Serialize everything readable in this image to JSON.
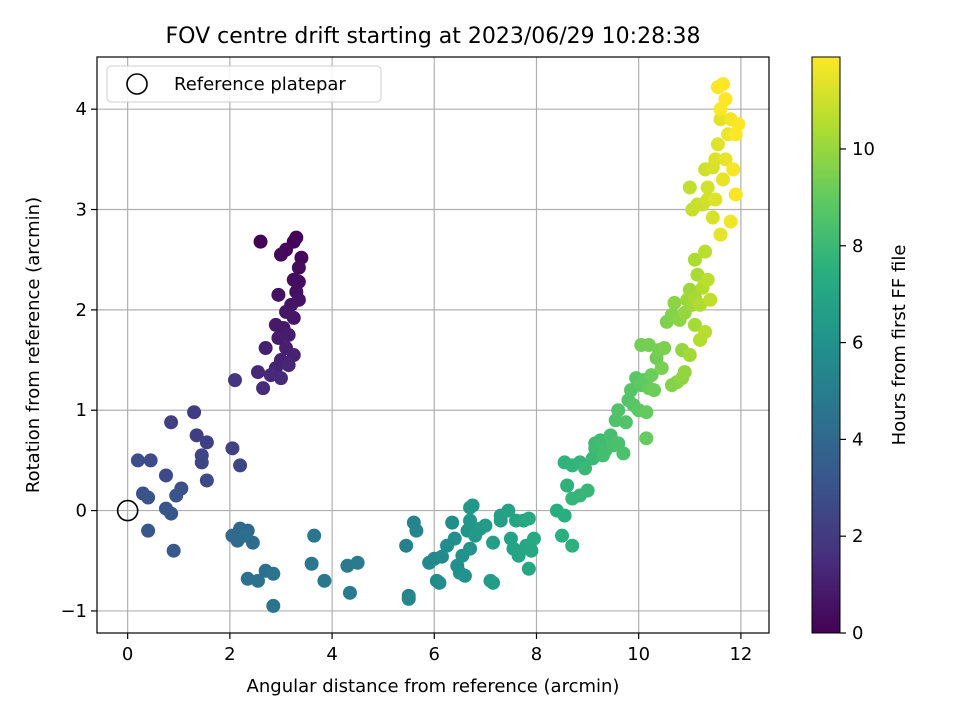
{
  "chart_data": {
    "type": "scatter",
    "title": "FOV centre drift starting at 2023/06/29 10:28:38",
    "xlabel": "Angular distance from reference (arcmin)",
    "ylabel": "Rotation from reference (arcmin)",
    "xlim": [
      -0.6,
      12.55
    ],
    "ylim": [
      -1.22,
      4.52
    ],
    "xticks": [
      0,
      2,
      4,
      6,
      8,
      10,
      12
    ],
    "yticks": [
      -1,
      0,
      1,
      2,
      3,
      4
    ],
    "grid": true,
    "legend": {
      "position": "top-left",
      "entries": [
        "Reference platepar"
      ]
    },
    "reference_point": {
      "x": 0,
      "y": 0
    },
    "colorbar": {
      "label": "Hours from first FF file",
      "min": 0,
      "max": 11.9,
      "ticks": [
        0,
        2,
        4,
        6,
        8,
        10
      ],
      "colormap": "viridis"
    },
    "points": [
      [
        3.3,
        2.72,
        0.1
      ],
      [
        3.25,
        2.68,
        0.15
      ],
      [
        3.4,
        2.52,
        0.2
      ],
      [
        3.1,
        2.6,
        0.25
      ],
      [
        3.0,
        2.55,
        0.3
      ],
      [
        3.35,
        2.42,
        0.35
      ],
      [
        3.25,
        2.3,
        0.4
      ],
      [
        3.35,
        2.28,
        0.45
      ],
      [
        3.3,
        2.18,
        0.5
      ],
      [
        2.95,
        2.15,
        0.55
      ],
      [
        3.35,
        2.1,
        0.6
      ],
      [
        3.2,
        2.05,
        0.65
      ],
      [
        3.1,
        1.98,
        0.7
      ],
      [
        3.25,
        1.92,
        0.75
      ],
      [
        2.9,
        1.85,
        0.8
      ],
      [
        3.05,
        1.82,
        0.85
      ],
      [
        3.15,
        1.75,
        0.9
      ],
      [
        2.95,
        1.72,
        0.95
      ],
      [
        3.1,
        1.62,
        1.0
      ],
      [
        2.7,
        1.62,
        1.05
      ],
      [
        3.25,
        1.55,
        1.1
      ],
      [
        3.0,
        1.5,
        1.15
      ],
      [
        2.9,
        1.42,
        1.2
      ],
      [
        3.15,
        1.45,
        1.25
      ],
      [
        2.55,
        1.38,
        1.3
      ],
      [
        2.8,
        1.35,
        1.35
      ],
      [
        3.0,
        1.32,
        1.4
      ],
      [
        2.65,
        1.22,
        1.45
      ],
      [
        2.6,
        2.68,
        0.05
      ],
      [
        2.1,
        1.3,
        1.8
      ],
      [
        1.3,
        0.98,
        2.05
      ],
      [
        1.35,
        0.75,
        2.15
      ],
      [
        1.55,
        0.68,
        2.2
      ],
      [
        0.85,
        0.88,
        2.25
      ],
      [
        2.05,
        0.62,
        2.35
      ],
      [
        1.45,
        0.55,
        2.45
      ],
      [
        1.45,
        0.48,
        2.5
      ],
      [
        2.2,
        0.45,
        2.55
      ],
      [
        0.75,
        0.35,
        2.6
      ],
      [
        1.55,
        0.3,
        2.65
      ],
      [
        0.45,
        0.5,
        2.75
      ],
      [
        0.2,
        0.5,
        2.8
      ],
      [
        1.05,
        0.22,
        2.9
      ],
      [
        0.3,
        0.17,
        2.95
      ],
      [
        0.4,
        0.13,
        3.0
      ],
      [
        0.95,
        0.15,
        3.05
      ],
      [
        0.75,
        0.02,
        3.1
      ],
      [
        0.85,
        -0.03,
        3.15
      ],
      [
        0.4,
        -0.2,
        3.2
      ],
      [
        0.9,
        -0.4,
        3.3
      ],
      [
        2.2,
        -0.18,
        4.0
      ],
      [
        2.35,
        -0.2,
        4.05
      ],
      [
        2.05,
        -0.25,
        4.1
      ],
      [
        2.15,
        -0.3,
        4.15
      ],
      [
        2.45,
        -0.32,
        4.2
      ],
      [
        2.3,
        -0.25,
        4.25
      ],
      [
        2.7,
        -0.6,
        4.35
      ],
      [
        2.35,
        -0.68,
        4.4
      ],
      [
        2.55,
        -0.7,
        4.45
      ],
      [
        2.85,
        -0.63,
        4.5
      ],
      [
        2.85,
        -0.95,
        4.55
      ],
      [
        3.65,
        -0.25,
        4.65
      ],
      [
        3.6,
        -0.53,
        4.7
      ],
      [
        3.85,
        -0.7,
        4.75
      ],
      [
        4.3,
        -0.55,
        4.85
      ],
      [
        4.5,
        -0.52,
        4.9
      ],
      [
        4.35,
        -0.82,
        4.95
      ],
      [
        5.45,
        -0.35,
        5.2
      ],
      [
        5.5,
        -0.85,
        5.25
      ],
      [
        5.6,
        -0.12,
        5.3
      ],
      [
        5.65,
        -0.2,
        5.35
      ],
      [
        5.5,
        -0.88,
        5.4
      ],
      [
        5.9,
        -0.52,
        5.5
      ],
      [
        6.0,
        -0.48,
        5.55
      ],
      [
        6.15,
        -0.46,
        5.6
      ],
      [
        6.05,
        -0.7,
        5.65
      ],
      [
        6.1,
        -0.72,
        5.7
      ],
      [
        6.25,
        -0.35,
        5.75
      ],
      [
        6.35,
        -0.12,
        5.8
      ],
      [
        6.4,
        -0.28,
        5.85
      ],
      [
        6.45,
        -0.55,
        5.9
      ],
      [
        6.5,
        -0.62,
        5.95
      ],
      [
        6.6,
        -0.65,
        6.0
      ],
      [
        6.55,
        -0.45,
        6.05
      ],
      [
        6.7,
        -0.38,
        6.1
      ],
      [
        6.65,
        -0.2,
        6.15
      ],
      [
        6.7,
        -0.1,
        6.2
      ],
      [
        6.75,
        0.05,
        6.25
      ],
      [
        6.7,
        0.03,
        6.3
      ],
      [
        6.8,
        -0.25,
        6.35
      ],
      [
        6.9,
        -0.18,
        6.4
      ],
      [
        7.0,
        -0.15,
        6.45
      ],
      [
        7.1,
        -0.7,
        6.5
      ],
      [
        7.15,
        -0.72,
        6.55
      ],
      [
        7.15,
        -0.32,
        6.6
      ],
      [
        7.3,
        -0.1,
        6.65
      ],
      [
        7.3,
        -0.05,
        6.7
      ],
      [
        7.45,
        0.0,
        6.75
      ],
      [
        7.5,
        -0.28,
        6.8
      ],
      [
        7.55,
        -0.38,
        6.85
      ],
      [
        7.6,
        -0.1,
        6.9
      ],
      [
        7.65,
        -0.45,
        6.95
      ],
      [
        7.75,
        -0.1,
        7.0
      ],
      [
        7.8,
        -0.35,
        7.05
      ],
      [
        7.85,
        -0.58,
        7.1
      ],
      [
        7.9,
        -0.4,
        7.15
      ],
      [
        7.95,
        -0.28,
        7.2
      ],
      [
        7.85,
        -0.08,
        7.25
      ],
      [
        8.4,
        0.0,
        7.4
      ],
      [
        8.55,
        -0.05,
        7.45
      ],
      [
        8.5,
        -0.25,
        7.5
      ],
      [
        8.7,
        -0.35,
        7.55
      ],
      [
        8.6,
        0.25,
        7.6
      ],
      [
        8.55,
        0.48,
        7.65
      ],
      [
        8.7,
        0.45,
        7.7
      ],
      [
        8.85,
        0.48,
        7.75
      ],
      [
        8.7,
        0.12,
        7.8
      ],
      [
        8.85,
        0.15,
        7.85
      ],
      [
        9.0,
        0.2,
        7.9
      ],
      [
        8.95,
        0.42,
        7.95
      ],
      [
        9.1,
        0.52,
        8.0
      ],
      [
        9.15,
        0.62,
        8.05
      ],
      [
        9.15,
        0.67,
        8.1
      ],
      [
        9.25,
        0.7,
        8.15
      ],
      [
        9.3,
        0.55,
        8.2
      ],
      [
        9.35,
        0.6,
        8.25
      ],
      [
        9.45,
        0.75,
        8.3
      ],
      [
        9.5,
        0.65,
        8.35
      ],
      [
        9.6,
        0.67,
        8.4
      ],
      [
        9.7,
        0.57,
        8.45
      ],
      [
        9.55,
        0.9,
        8.5
      ],
      [
        9.6,
        1.0,
        8.55
      ],
      [
        9.75,
        0.88,
        8.6
      ],
      [
        9.8,
        1.1,
        8.65
      ],
      [
        9.85,
        1.2,
        8.7
      ],
      [
        9.9,
        1.05,
        8.75
      ],
      [
        9.95,
        1.32,
        8.8
      ],
      [
        10.0,
        1.0,
        8.85
      ],
      [
        10.05,
        1.25,
        8.9
      ],
      [
        10.1,
        1.3,
        8.95
      ],
      [
        10.15,
        0.98,
        9.0
      ],
      [
        10.15,
        0.72,
        9.05
      ],
      [
        10.2,
        1.22,
        9.1
      ],
      [
        10.25,
        1.35,
        9.15
      ],
      [
        10.3,
        1.2,
        9.2
      ],
      [
        10.35,
        1.52,
        9.25
      ],
      [
        10.05,
        1.65,
        9.3
      ],
      [
        10.2,
        1.65,
        9.35
      ],
      [
        10.4,
        1.6,
        9.4
      ],
      [
        10.45,
        1.42,
        9.45
      ],
      [
        10.5,
        1.62,
        9.5
      ],
      [
        10.55,
        1.88,
        9.55
      ],
      [
        10.65,
        1.95,
        9.6
      ],
      [
        10.65,
        1.25,
        9.65
      ],
      [
        10.75,
        1.28,
        9.7
      ],
      [
        10.8,
        1.9,
        9.75
      ],
      [
        10.7,
        2.07,
        9.8
      ],
      [
        10.85,
        1.32,
        9.85
      ],
      [
        10.9,
        1.38,
        9.9
      ],
      [
        10.85,
        1.6,
        9.95
      ],
      [
        10.9,
        1.97,
        10.0
      ],
      [
        10.95,
        2.1,
        10.05
      ],
      [
        11.0,
        2.2,
        10.1
      ],
      [
        11.05,
        2.05,
        10.15
      ],
      [
        11.0,
        1.55,
        10.2
      ],
      [
        11.1,
        1.85,
        10.25
      ],
      [
        11.1,
        2.12,
        10.3
      ],
      [
        11.15,
        2.35,
        10.35
      ],
      [
        11.1,
        2.5,
        10.4
      ],
      [
        11.2,
        2.05,
        10.45
      ],
      [
        11.25,
        2.22,
        10.5
      ],
      [
        11.2,
        1.7,
        10.55
      ],
      [
        11.3,
        1.78,
        10.6
      ],
      [
        11.3,
        2.58,
        10.65
      ],
      [
        11.35,
        2.3,
        10.7
      ],
      [
        11.4,
        2.1,
        10.75
      ],
      [
        11.0,
        3.22,
        10.8
      ],
      [
        11.05,
        3.0,
        10.85
      ],
      [
        11.15,
        3.05,
        10.9
      ],
      [
        11.25,
        3.05,
        10.95
      ],
      [
        11.3,
        3.4,
        11.0
      ],
      [
        11.35,
        3.1,
        11.05
      ],
      [
        11.35,
        3.22,
        11.1
      ],
      [
        11.45,
        3.42,
        11.15
      ],
      [
        11.45,
        2.92,
        11.2
      ],
      [
        11.5,
        3.5,
        11.25
      ],
      [
        11.5,
        3.1,
        11.3
      ],
      [
        11.55,
        3.65,
        11.35
      ],
      [
        11.6,
        3.9,
        11.4
      ],
      [
        11.6,
        2.75,
        11.45
      ],
      [
        11.65,
        3.3,
        11.5
      ],
      [
        11.7,
        3.5,
        11.55
      ],
      [
        11.75,
        3.75,
        11.6
      ],
      [
        11.8,
        2.88,
        11.65
      ],
      [
        11.8,
        3.9,
        11.7
      ],
      [
        11.85,
        3.4,
        11.75
      ],
      [
        11.9,
        3.15,
        11.8
      ],
      [
        11.9,
        3.75,
        11.85
      ],
      [
        11.95,
        3.85,
        11.9
      ],
      [
        11.55,
        4.22,
        11.88
      ],
      [
        11.65,
        4.25,
        11.89
      ],
      [
        11.7,
        4.1,
        11.9
      ],
      [
        11.6,
        4.0,
        11.85
      ]
    ]
  }
}
